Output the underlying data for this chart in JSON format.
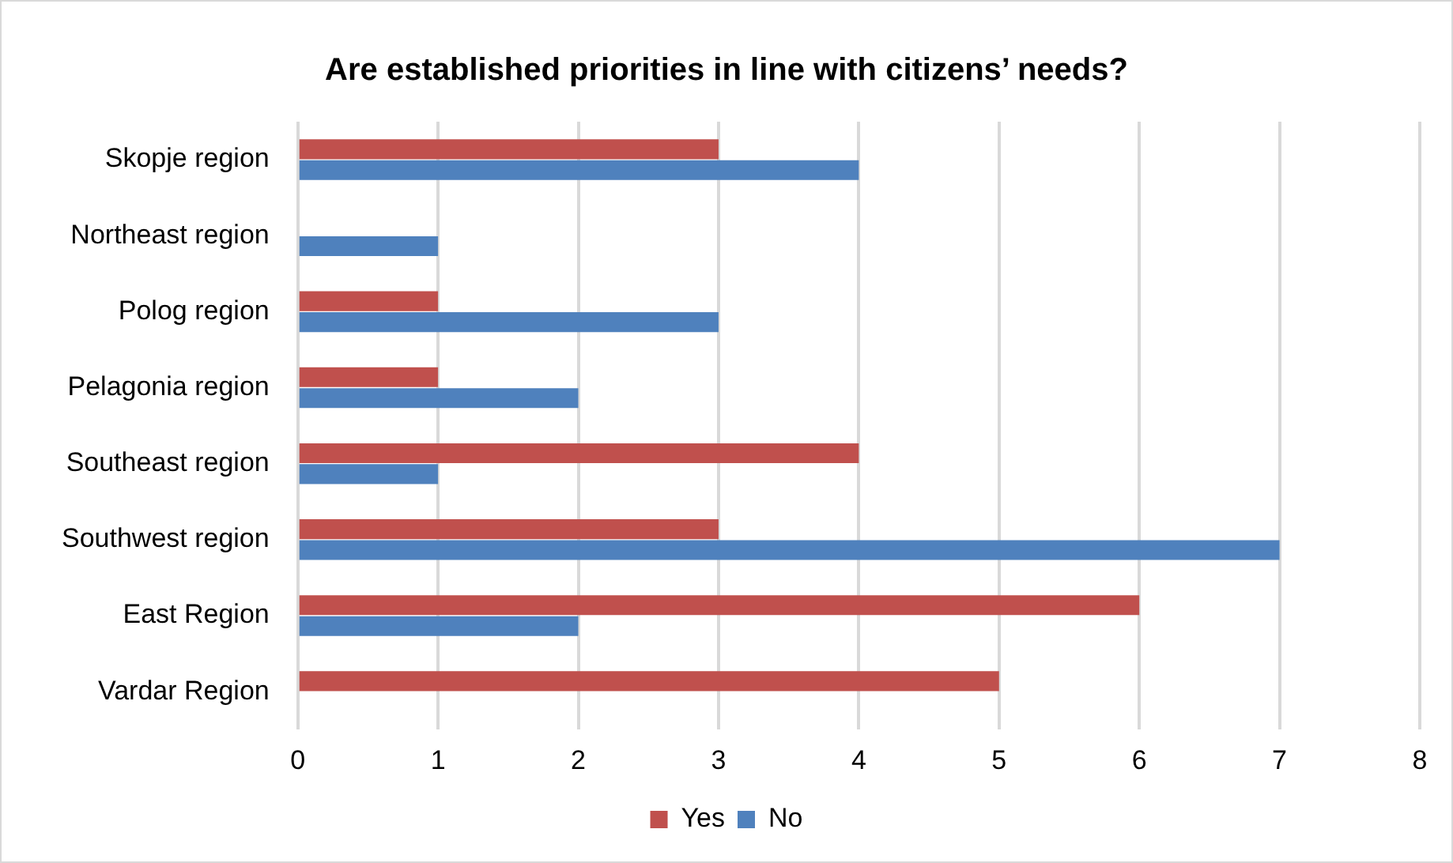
{
  "chart_data": {
    "type": "bar",
    "orientation": "horizontal",
    "title": "Are established priorities in line with citizens’ needs?",
    "categories": [
      "Skopje region",
      "Northeast region",
      "Polog region",
      "Pelagonia region",
      "Southeast region",
      "Southwest region",
      "East Region",
      "Vardar Region"
    ],
    "series": [
      {
        "name": "Yes",
        "color": "#c0504d",
        "values": [
          3,
          0,
          1,
          1,
          4,
          3,
          6,
          5
        ]
      },
      {
        "name": "No",
        "color": "#4f81bd",
        "values": [
          4,
          1,
          3,
          2,
          1,
          7,
          2,
          0
        ]
      }
    ],
    "xlim": [
      0,
      8
    ],
    "xticks": [
      0,
      1,
      2,
      3,
      4,
      5,
      6,
      7,
      8
    ],
    "grid": "x",
    "legend": "bottom"
  }
}
